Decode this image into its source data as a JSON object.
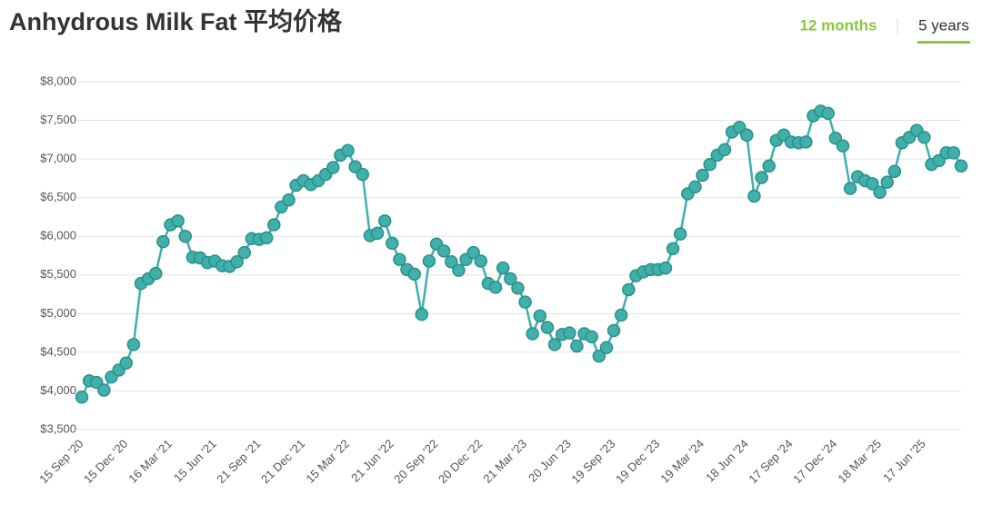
{
  "header": {
    "tabs": [
      "12 months",
      "5 years"
    ]
  },
  "chart_data": {
    "type": "line",
    "title": "Anhydrous Milk Fat 平均价格",
    "categories": [
      "15 Sep '20",
      null,
      null,
      null,
      null,
      null,
      "15 Dec '20",
      null,
      null,
      null,
      null,
      null,
      "16 Mar '21",
      null,
      null,
      null,
      null,
      null,
      "15 Jun '21",
      null,
      null,
      null,
      null,
      null,
      "21 Sep '21",
      null,
      null,
      null,
      null,
      null,
      "21 Dec '21",
      null,
      null,
      null,
      null,
      null,
      "15 Mar '22",
      null,
      null,
      null,
      null,
      null,
      "21 Jun '22",
      null,
      null,
      null,
      null,
      null,
      "20 Sep '22",
      null,
      null,
      null,
      null,
      null,
      "20 Dec '22",
      null,
      null,
      null,
      null,
      null,
      "21 Mar '23",
      null,
      null,
      null,
      null,
      null,
      "20 Jun '23",
      null,
      null,
      null,
      null,
      null,
      "19 Sep '23",
      null,
      null,
      null,
      null,
      null,
      "19 Dec '23",
      null,
      null,
      null,
      null,
      null,
      "19 Mar '24",
      null,
      null,
      null,
      null,
      null,
      "18 Jun '24",
      null,
      null,
      null,
      null,
      null,
      "17 Sep '24",
      null,
      null,
      null,
      null,
      null,
      "17 Dec '24",
      null,
      null,
      null,
      null,
      null,
      "18 Mar '25",
      null,
      null,
      null,
      null,
      null,
      "17 Jun '25",
      null,
      null,
      null,
      null,
      null
    ],
    "series": [
      {
        "name": "Anhydrous Milk Fat",
        "color": "#3fb0aa",
        "values": [
          3920,
          4130,
          4110,
          4010,
          4180,
          4270,
          4360,
          4600,
          5390,
          5450,
          5520,
          5930,
          6150,
          6200,
          6000,
          5730,
          5720,
          5660,
          5680,
          5620,
          5610,
          5670,
          5790,
          5970,
          5960,
          5980,
          6150,
          6380,
          6470,
          6660,
          6720,
          6670,
          6720,
          6800,
          6890,
          7050,
          7110,
          6900,
          6800,
          6010,
          6040,
          6200,
          5910,
          5700,
          5570,
          5510,
          4990,
          5680,
          5900,
          5810,
          5670,
          5560,
          5700,
          5790,
          5680,
          5390,
          5340,
          5590,
          5450,
          5330,
          5150,
          4740,
          4970,
          4820,
          4600,
          4730,
          4750,
          4580,
          4740,
          4700,
          4450,
          4560,
          4780,
          4980,
          5310,
          5490,
          5540,
          5570,
          5570,
          5590,
          5840,
          6030,
          6550,
          6640,
          6790,
          6930,
          7050,
          7120,
          7350,
          7410,
          7310,
          6520,
          6760,
          6910,
          7240,
          7310,
          7220,
          7210,
          7220,
          7560,
          7620,
          7590,
          7270,
          7170,
          6620,
          6770,
          6720,
          6680,
          6570,
          6700,
          6840,
          7210,
          7280,
          7370,
          7280,
          6930,
          6980,
          7080,
          7080,
          6910
        ]
      }
    ],
    "ylim": [
      3500,
      8000
    ],
    "yticks": [
      {
        "value": 3500,
        "label": "$3,500"
      },
      {
        "value": 4000,
        "label": "$4,000"
      },
      {
        "value": 4500,
        "label": "$4,500"
      },
      {
        "value": 5000,
        "label": "$5,000"
      },
      {
        "value": 5500,
        "label": "$5,500"
      },
      {
        "value": 6000,
        "label": "$6,000"
      },
      {
        "value": 6500,
        "label": "$6,500"
      },
      {
        "value": 7000,
        "label": "$7,000"
      },
      {
        "value": 7500,
        "label": "$7,500"
      },
      {
        "value": 8000,
        "label": "$8,000"
      }
    ],
    "grid": true
  }
}
